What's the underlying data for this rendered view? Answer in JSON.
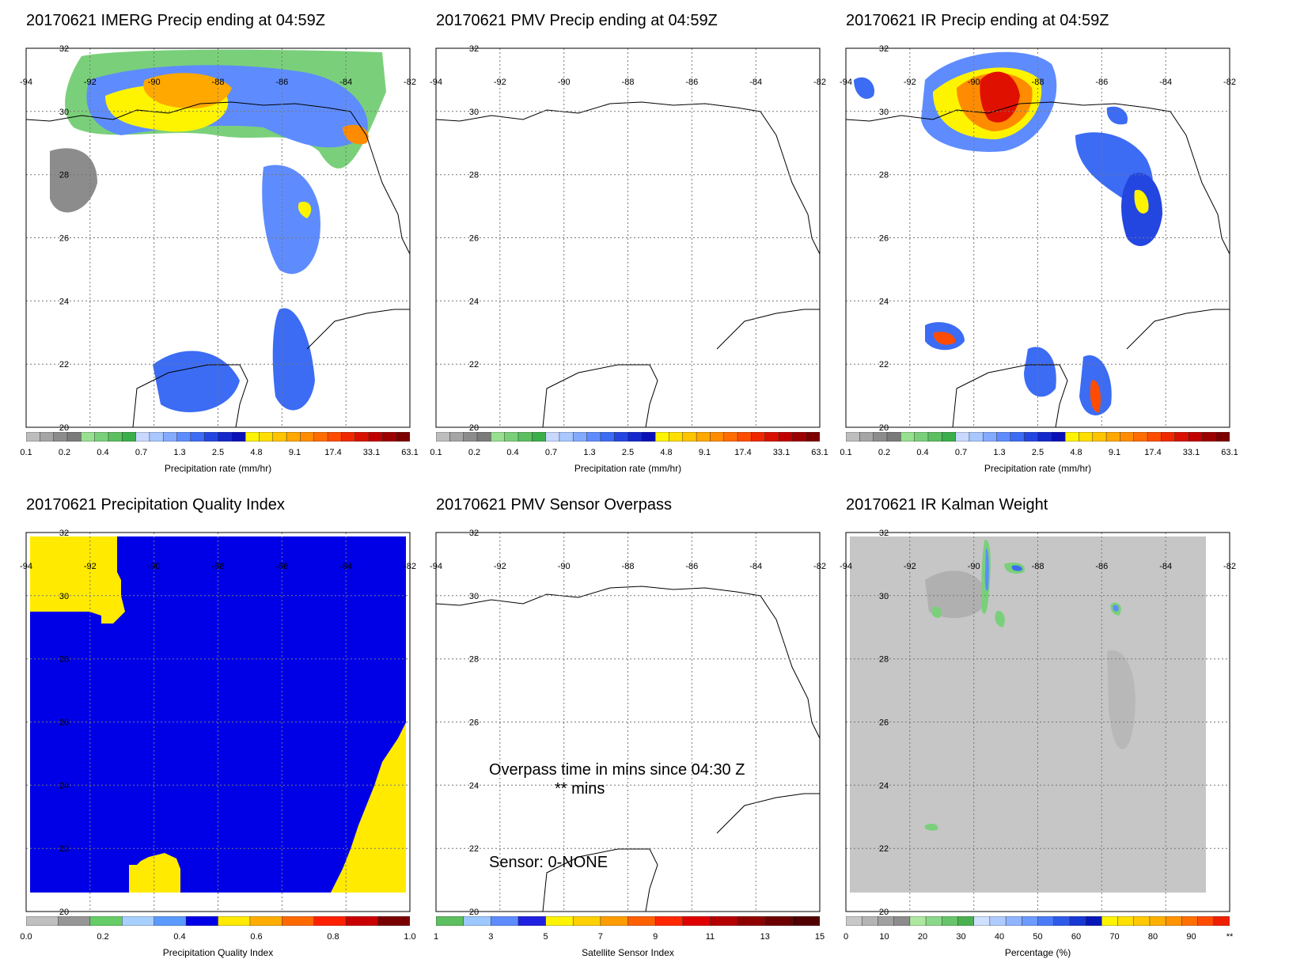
{
  "chart_data": [
    {
      "type": "heatmap",
      "title": "20170621 IMERG Precip ending at 04:59Z",
      "xlim": [
        -94,
        -82
      ],
      "ylim": [
        20,
        32
      ],
      "x_ticks": [
        "-94",
        "-92",
        "-90",
        "-88",
        "-86",
        "-84",
        "-82"
      ],
      "y_ticks": [
        "20",
        "22",
        "24",
        "26",
        "28",
        "30",
        "32"
      ],
      "colorbar": {
        "label": "Precipitation rate (mm/hr)",
        "ticks": [
          "0.1",
          "0.2",
          "0.4",
          "0.7",
          "1.3",
          "2.5",
          "4.8",
          "9.1",
          "17.4",
          "33.1",
          "63.1"
        ],
        "colors": [
          "#bdbdbd",
          "#a5a5a5",
          "#8c8c8c",
          "#7a7a7a",
          "#97e08f",
          "#7ad07a",
          "#5cbf60",
          "#3aae4a",
          "#c8d8ff",
          "#a8c8ff",
          "#84aaff",
          "#5e8cff",
          "#3c6cf4",
          "#2446e0",
          "#1428cc",
          "#0a10b8",
          "#fff400",
          "#ffde00",
          "#ffc400",
          "#ffa800",
          "#ff8c00",
          "#ff6c00",
          "#ff4c00",
          "#f02800",
          "#d81000",
          "#c00000",
          "#9c0000",
          "#7c0000"
        ]
      },
      "grid": true
    },
    {
      "type": "heatmap",
      "title": "20170621 PMV Precip ending at 04:59Z",
      "xlim": [
        -94,
        -82
      ],
      "ylim": [
        20,
        32
      ],
      "x_ticks": [
        "-94",
        "-92",
        "-90",
        "-88",
        "-86",
        "-84",
        "-82"
      ],
      "y_ticks": [
        "20",
        "22",
        "24",
        "26",
        "28",
        "30",
        "32"
      ],
      "colorbar": {
        "label": "Precipitation rate (mm/hr)",
        "ticks": [
          "0.1",
          "0.2",
          "0.4",
          "0.7",
          "1.3",
          "2.5",
          "4.8",
          "9.1",
          "17.4",
          "33.1",
          "63.1"
        ]
      },
      "grid": true
    },
    {
      "type": "heatmap",
      "title": "20170621 IR Precip ending at 04:59Z",
      "xlim": [
        -94,
        -82
      ],
      "ylim": [
        20,
        32
      ],
      "x_ticks": [
        "-94",
        "-92",
        "-90",
        "-88",
        "-86",
        "-84",
        "-82"
      ],
      "y_ticks": [
        "20",
        "22",
        "24",
        "26",
        "28",
        "30",
        "32"
      ],
      "colorbar": {
        "label": "Precipitation rate (mm/hr)",
        "ticks": [
          "0.1",
          "0.2",
          "0.4",
          "0.7",
          "1.3",
          "2.5",
          "4.8",
          "9.1",
          "17.4",
          "33.1",
          "63.1"
        ]
      },
      "grid": true
    },
    {
      "type": "heatmap",
      "title": "20170621 Precipitation Quality Index",
      "xlim": [
        -94,
        -82
      ],
      "ylim": [
        20,
        32
      ],
      "x_ticks": [
        "-94",
        "-92",
        "-90",
        "-88",
        "-86",
        "-84",
        "-82"
      ],
      "y_ticks": [
        "20",
        "22",
        "24",
        "26",
        "28",
        "30",
        "32"
      ],
      "colorbar": {
        "label": "Precipitation Quality Index",
        "ticks": [
          "0.0",
          "0.2",
          "0.4",
          "0.6",
          "0.8",
          "1.0"
        ],
        "colors": [
          "#c0c0c0",
          "#969696",
          "#66cc66",
          "#a8d0ff",
          "#5a9aff",
          "#0000e6",
          "#ffea00",
          "#ffae00",
          "#ff6a00",
          "#ff2000",
          "#c80000",
          "#780000"
        ]
      },
      "grid": true
    },
    {
      "type": "heatmap",
      "title": "20170621 PMV Sensor Overpass",
      "xlim": [
        -94,
        -82
      ],
      "ylim": [
        20,
        32
      ],
      "x_ticks": [
        "-94",
        "-92",
        "-90",
        "-88",
        "-86",
        "-84",
        "-82"
      ],
      "y_ticks": [
        "20",
        "22",
        "24",
        "26",
        "28",
        "30",
        "32"
      ],
      "annotations": [
        "Overpass time in mins since 04:30 Z",
        "** mins",
        "Sensor:   0-NONE"
      ],
      "colorbar": {
        "label": "Satellite Sensor Index",
        "ticks": [
          "1",
          "3",
          "5",
          "7",
          "9",
          "11",
          "13",
          "15"
        ],
        "colors": [
          "#5cbf60",
          "#9cc8ff",
          "#5e8cff",
          "#2020e0",
          "#fff400",
          "#ffd000",
          "#ff9c00",
          "#ff6000",
          "#ff2800",
          "#e00000",
          "#b40000",
          "#8c0000",
          "#6c0000",
          "#500000"
        ]
      },
      "grid": true
    },
    {
      "type": "heatmap",
      "title": "20170621 IR Kalman Weight",
      "xlim": [
        -94,
        -82
      ],
      "ylim": [
        20,
        32
      ],
      "x_ticks": [
        "-94",
        "-92",
        "-90",
        "-88",
        "-86",
        "-84",
        "-82"
      ],
      "y_ticks": [
        "20",
        "22",
        "24",
        "26",
        "28",
        "30",
        "32"
      ],
      "colorbar": {
        "label": "Percentage (%)",
        "ticks": [
          "0",
          "10",
          "20",
          "30",
          "40",
          "50",
          "60",
          "70",
          "80",
          "90",
          "**"
        ]
      },
      "grid": true
    }
  ]
}
